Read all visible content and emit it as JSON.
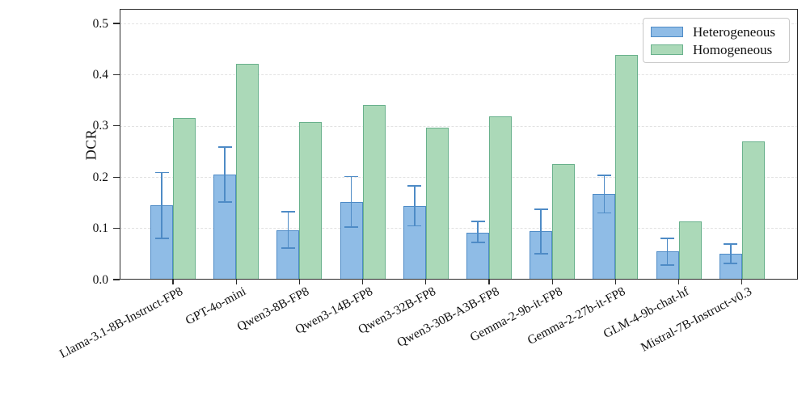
{
  "axes": {
    "ylabel": "DCR",
    "ytick_labels": [
      "0.0",
      "0.1",
      "0.2",
      "0.3",
      "0.4",
      "0.5"
    ]
  },
  "colors": {
    "heterogeneous_fill": "#8fbce6",
    "heterogeneous_edge": "#4e8bc6",
    "homogeneous_fill": "#abd9b8",
    "homogeneous_edge": "#69b18c",
    "errorbar": "#4e8bc6",
    "gridline": "#e2e2e2",
    "spine": "#2b2b2b"
  },
  "chart_data": {
    "type": "bar",
    "title": "",
    "xlabel": "",
    "ylabel": "DCR",
    "ylim": [
      0,
      0.528
    ],
    "ytick_values": [
      0.0,
      0.1,
      0.2,
      0.3,
      0.4,
      0.5
    ],
    "grid": "horizontal dashed",
    "legend_position": "upper right",
    "categories": [
      "Llama-3.1-8B-Instruct-FP8",
      "GPT-4o-mini",
      "Qwen3-8B-FP8",
      "Qwen3-14B-FP8",
      "Qwen3-32B-FP8",
      "Qwen3-30B-A3B-FP8",
      "Gemma-2-9b-it-FP8",
      "Gemma-2-27b-it-FP8",
      "GLM-4-9b-chat-hf",
      "Mistral-7B-Instruct-v0.3"
    ],
    "series": [
      {
        "name": "Heterogeneous",
        "values": [
          0.145,
          0.205,
          0.096,
          0.151,
          0.144,
          0.092,
          0.094,
          0.167,
          0.056,
          0.051
        ],
        "error_low": [
          0.081,
          0.151,
          0.062,
          0.102,
          0.105,
          0.072,
          0.051,
          0.13,
          0.029,
          0.031
        ],
        "error_high": [
          0.209,
          0.259,
          0.132,
          0.201,
          0.183,
          0.113,
          0.137,
          0.204,
          0.08,
          0.069
        ]
      },
      {
        "name": "Homogeneous",
        "values": [
          0.315,
          0.421,
          0.307,
          0.341,
          0.296,
          0.319,
          0.226,
          0.438,
          0.113,
          0.27
        ]
      }
    ]
  }
}
